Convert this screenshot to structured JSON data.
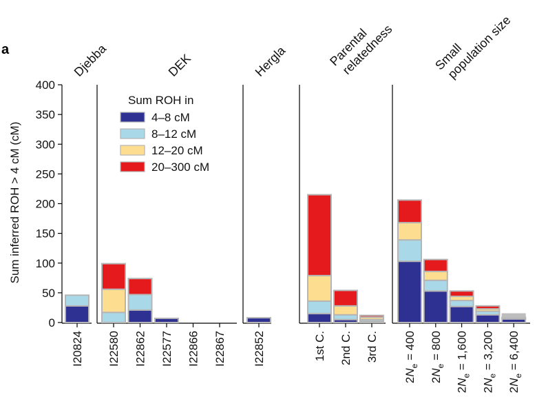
{
  "panel_label": "a",
  "chart_data": {
    "type": "bar",
    "stacked": true,
    "ylabel": "Sum inferred ROH > 4 cM (cM)",
    "ylim": [
      0,
      400
    ],
    "yticks": [
      "0",
      "50",
      "100",
      "150",
      "200",
      "250",
      "300",
      "350",
      "400"
    ],
    "legend": {
      "title": "Sum ROH in",
      "placement": "top-left of DEK panel",
      "entries": [
        {
          "label": "4–8 cM",
          "color": "#2e3192"
        },
        {
          "label": "8–12 cM",
          "color": "#a9d8e8"
        },
        {
          "label": "12–20 cM",
          "color": "#fddd8f"
        },
        {
          "label": "20–300 cM",
          "color": "#e41a1c"
        }
      ]
    },
    "extra_color": "#bdbdbd",
    "groups": [
      {
        "name": "Djebba",
        "bars": [
          {
            "label": "I20824",
            "segments": [
              28,
              18,
              0,
              0
            ]
          }
        ]
      },
      {
        "name": "DEK",
        "bars": [
          {
            "label": "I22580",
            "segments": [
              0,
              17,
              39,
              43
            ]
          },
          {
            "label": "I22862",
            "segments": [
              21,
              26,
              0,
              27
            ]
          },
          {
            "label": "I22577",
            "segments": [
              7,
              0,
              0,
              0
            ]
          },
          {
            "label": "I22866",
            "segments": [
              0,
              0,
              0,
              0
            ]
          },
          {
            "label": "I22867",
            "segments": [
              0,
              0,
              0,
              0
            ]
          }
        ]
      },
      {
        "name": "Hergla",
        "bars": [
          {
            "label": "I22852",
            "segments": [
              8,
              0,
              0,
              0
            ]
          }
        ]
      },
      {
        "name": "Parental relatedness",
        "name_lines": [
          "Parental",
          "relatedness"
        ],
        "bars": [
          {
            "label": "1st C.",
            "segments": [
              15,
              21,
              43,
              136
            ]
          },
          {
            "label": "2nd C.",
            "segments": [
              5,
              8,
              15,
              26
            ]
          },
          {
            "label": "3rd C.",
            "segments": [
              2,
              3,
              4,
              3
            ]
          }
        ]
      },
      {
        "name": "Small population size",
        "name_lines": [
          "Small",
          "population size"
        ],
        "bars": [
          {
            "label": "2Ne = 400",
            "segments": [
              103,
              36,
              29,
              38
            ]
          },
          {
            "label": "2Ne = 800",
            "segments": [
              53,
              18,
              15,
              20
            ]
          },
          {
            "label": "2Ne = 1,600",
            "segments": [
              27,
              10,
              7,
              9
            ]
          },
          {
            "label": "2Ne = 3,200",
            "segments": [
              13,
              6,
              4,
              5
            ],
            "extra": 0
          },
          {
            "label": "2Ne = 6,400",
            "segments": [
              6,
              2,
              1,
              0
            ],
            "extra": 6
          }
        ]
      }
    ]
  }
}
